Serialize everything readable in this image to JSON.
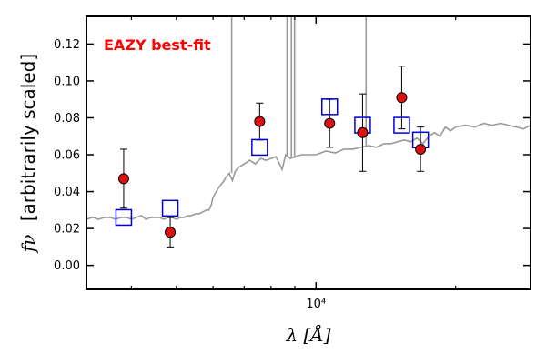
{
  "chart_data": {
    "type": "scatter",
    "title": "",
    "xlabel": "λ [Å]",
    "ylabel": "f_ν [arbitrarily scaled]",
    "ylabel_symbol": "fν",
    "ylabel_text": "[arbitrarily scaled]",
    "xscale": "log",
    "xlim": [
      3200,
      29000
    ],
    "ylim": [
      -0.013,
      0.135
    ],
    "xticks_major": [
      10000
    ],
    "xtick_labels": [
      "10⁴"
    ],
    "xticks_minor": [
      4000,
      5000,
      6000,
      7000,
      8000,
      9000,
      20000
    ],
    "yticks": [
      0.0,
      0.02,
      0.04,
      0.06,
      0.08,
      0.1,
      0.12
    ],
    "ytick_labels": [
      "0.00",
      "0.02",
      "0.04",
      "0.06",
      "0.08",
      "0.10",
      "0.12"
    ],
    "grid": false,
    "annotation": {
      "text": "EAZY best-fit",
      "color": "#ff0000",
      "position": "top-left"
    },
    "colors": {
      "model": "#999999",
      "observed_face": "#dd1111",
      "observed_edge": "#000000",
      "synthetic_edge": "#0000dd",
      "errorbar": "#000000"
    },
    "series": [
      {
        "kind": "line",
        "points": [
          [
            3200,
            0.025
          ],
          [
            3300,
            0.026
          ],
          [
            3400,
            0.025
          ],
          [
            3500,
            0.026
          ],
          [
            3600,
            0.026
          ],
          [
            3700,
            0.025
          ],
          [
            3800,
            0.026
          ],
          [
            3900,
            0.026
          ],
          [
            4000,
            0.025
          ],
          [
            4100,
            0.026
          ],
          [
            4200,
            0.027
          ],
          [
            4300,
            0.025
          ],
          [
            4400,
            0.026
          ],
          [
            4500,
            0.026
          ],
          [
            4600,
            0.026
          ],
          [
            4700,
            0.025
          ],
          [
            4800,
            0.026
          ],
          [
            4900,
            0.026
          ],
          [
            5000,
            0.025
          ],
          [
            5100,
            0.026
          ],
          [
            5200,
            0.026
          ],
          [
            5300,
            0.027
          ],
          [
            5400,
            0.027
          ],
          [
            5500,
            0.028
          ],
          [
            5600,
            0.028
          ],
          [
            5700,
            0.029
          ],
          [
            5800,
            0.03
          ],
          [
            5880,
            0.03
          ],
          [
            5950,
            0.033
          ],
          [
            6000,
            0.037
          ],
          [
            6100,
            0.04
          ],
          [
            6200,
            0.043
          ],
          [
            6300,
            0.045
          ],
          [
            6400,
            0.048
          ],
          [
            6500,
            0.05
          ],
          [
            6600,
            0.046
          ],
          [
            6700,
            0.051
          ],
          [
            6800,
            0.053
          ],
          [
            7000,
            0.055
          ],
          [
            7200,
            0.057
          ],
          [
            7400,
            0.055
          ],
          [
            7600,
            0.058
          ],
          [
            7800,
            0.057
          ],
          [
            8000,
            0.058
          ],
          [
            8200,
            0.059
          ],
          [
            8450,
            0.052
          ],
          [
            8600,
            0.06
          ],
          [
            8800,
            0.058
          ],
          [
            9000,
            0.059
          ],
          [
            9300,
            0.06
          ],
          [
            9600,
            0.06
          ],
          [
            10000,
            0.06
          ],
          [
            10500,
            0.062
          ],
          [
            11000,
            0.061
          ],
          [
            11500,
            0.063
          ],
          [
            12000,
            0.063
          ],
          [
            12500,
            0.064
          ],
          [
            13000,
            0.065
          ],
          [
            13500,
            0.064
          ],
          [
            14000,
            0.066
          ],
          [
            14500,
            0.066
          ],
          [
            15000,
            0.067
          ],
          [
            15500,
            0.068
          ],
          [
            16000,
            0.067
          ],
          [
            16500,
            0.069
          ],
          [
            17000,
            0.066
          ],
          [
            17500,
            0.07
          ],
          [
            18000,
            0.072
          ],
          [
            18500,
            0.07
          ],
          [
            19000,
            0.075
          ],
          [
            19500,
            0.073
          ],
          [
            20000,
            0.075
          ],
          [
            21000,
            0.076
          ],
          [
            22000,
            0.075
          ],
          [
            23000,
            0.077
          ],
          [
            24000,
            0.076
          ],
          [
            25000,
            0.077
          ],
          [
            26000,
            0.076
          ],
          [
            27000,
            0.075
          ],
          [
            28000,
            0.074
          ],
          [
            29000,
            0.076
          ]
        ],
        "spikes": [
          {
            "x": 6580,
            "to": 0.135
          },
          {
            "x": 8660,
            "to": 0.135
          },
          {
            "x": 8850,
            "to": 0.135
          },
          {
            "x": 8990,
            "to": 0.135
          },
          {
            "x": 12820,
            "to": 0.135
          }
        ]
      },
      {
        "kind": "observed",
        "marker": "circle",
        "points": [
          {
            "x": 3850,
            "y": 0.047,
            "yerr": 0.016
          },
          {
            "x": 4850,
            "y": 0.018,
            "yerr": 0.008
          },
          {
            "x": 7560,
            "y": 0.078,
            "yerr": 0.01
          },
          {
            "x": 10700,
            "y": 0.077,
            "yerr": 0.013
          },
          {
            "x": 12600,
            "y": 0.072,
            "yerr": 0.021
          },
          {
            "x": 15300,
            "y": 0.091,
            "yerr": 0.017
          },
          {
            "x": 16800,
            "y": 0.063,
            "yerr": 0.012
          }
        ]
      },
      {
        "kind": "synthetic",
        "marker": "square",
        "points": [
          {
            "x": 3850,
            "y": 0.026
          },
          {
            "x": 4850,
            "y": 0.031
          },
          {
            "x": 7560,
            "y": 0.064
          },
          {
            "x": 10700,
            "y": 0.086
          },
          {
            "x": 12600,
            "y": 0.076
          },
          {
            "x": 15300,
            "y": 0.076
          },
          {
            "x": 16800,
            "y": 0.068
          }
        ]
      }
    ]
  }
}
